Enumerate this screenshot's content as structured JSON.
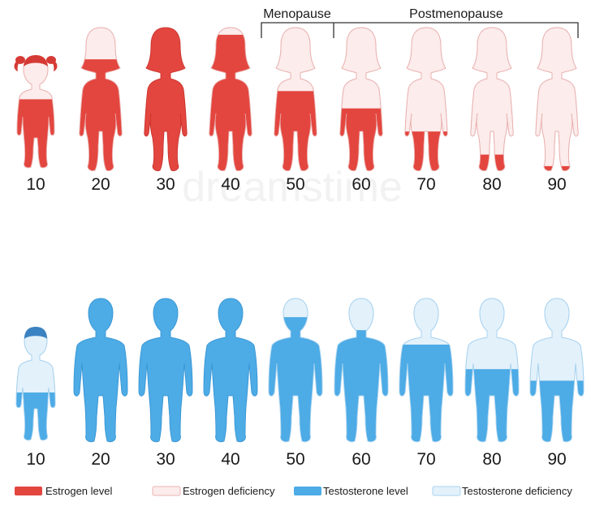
{
  "colors": {
    "estrogen_level": "#e3463f",
    "estrogen_level_stroke": "#c7302a",
    "estrogen_deficiency": "#fcecec",
    "estrogen_deficiency_stroke": "#e9b3b1",
    "girl_hair": "#d63a34",
    "testosterone_level": "#4dabe6",
    "testosterone_level_stroke": "#3594d2",
    "testosterone_deficiency": "#e3f1fb",
    "testosterone_deficiency_stroke": "#a9d3ef",
    "boy_hair": "#3b82c2",
    "text": "#1a1a1a",
    "bracket": "#333333"
  },
  "header": {
    "menopause": "Menopause",
    "postmenopause": "Postmenopause"
  },
  "watermark": "dreamstime",
  "female_row": [
    {
      "age": "10",
      "estrogen_level_fraction": 0.62,
      "figure": "girl"
    },
    {
      "age": "20",
      "estrogen_level_fraction": 0.78,
      "figure": "woman"
    },
    {
      "age": "30",
      "estrogen_level_fraction": 1.0,
      "figure": "woman"
    },
    {
      "age": "40",
      "estrogen_level_fraction": 0.95,
      "figure": "woman"
    },
    {
      "age": "50",
      "estrogen_level_fraction": 0.56,
      "figure": "woman"
    },
    {
      "age": "60",
      "estrogen_level_fraction": 0.44,
      "figure": "woman"
    },
    {
      "age": "70",
      "estrogen_level_fraction": 0.28,
      "figure": "woman"
    },
    {
      "age": "80",
      "estrogen_level_fraction": 0.12,
      "figure": "woman"
    },
    {
      "age": "90",
      "estrogen_level_fraction": 0.04,
      "figure": "woman"
    }
  ],
  "male_row": [
    {
      "age": "10",
      "testosterone_level_fraction": 0.42,
      "figure": "boy"
    },
    {
      "age": "20",
      "testosterone_level_fraction": 1.0,
      "figure": "man"
    },
    {
      "age": "30",
      "testosterone_level_fraction": 1.0,
      "figure": "man"
    },
    {
      "age": "40",
      "testosterone_level_fraction": 1.0,
      "figure": "man"
    },
    {
      "age": "50",
      "testosterone_level_fraction": 0.87,
      "figure": "man"
    },
    {
      "age": "60",
      "testosterone_level_fraction": 0.78,
      "figure": "man"
    },
    {
      "age": "70",
      "testosterone_level_fraction": 0.68,
      "figure": "man"
    },
    {
      "age": "80",
      "testosterone_level_fraction": 0.51,
      "figure": "man"
    },
    {
      "age": "90",
      "testosterone_level_fraction": 0.43,
      "figure": "man"
    }
  ],
  "legend": {
    "estrogen_level": "Estrogen level",
    "estrogen_deficiency": "Estrogen deficiency",
    "testosterone_level": "Testosterone level",
    "testosterone_deficiency": "Testosterone deficiency"
  }
}
